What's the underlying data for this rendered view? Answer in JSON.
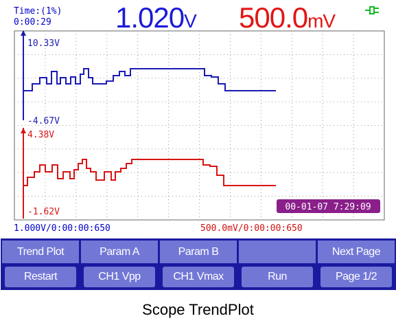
{
  "header": {
    "time_label": "Time:(1%)",
    "time_value": "0:00:29",
    "readout_a_value": "1.020",
    "readout_a_unit": "V",
    "readout_b_value": "500.0",
    "readout_b_unit": "mV",
    "power_icon": "plug-icon",
    "color_a": "#1a1ad8",
    "color_b": "#e21515"
  },
  "trace_a": {
    "top_label": "10.33V",
    "bottom_label": "-4.67V",
    "color": "#1a1ab4"
  },
  "trace_b": {
    "top_label": "4.38V",
    "bottom_label": "-1.62V",
    "color": "#d81414"
  },
  "datetime": "00-01-07 7:29:09",
  "scale": {
    "a": "1.000V/0:00:00:650",
    "b": "500.0mV/0:00:00:650"
  },
  "softkeys": [
    {
      "top": "Trend Plot",
      "bottom": "Restart"
    },
    {
      "top": "Param A",
      "bottom": "CH1 Vpp"
    },
    {
      "top": "Param B",
      "bottom": "CH1 Vmax"
    },
    {
      "top": "",
      "bottom": "Run"
    },
    {
      "top": "Next Page",
      "bottom": "Page 1/2"
    }
  ],
  "caption": "Scope TrendPlot"
}
